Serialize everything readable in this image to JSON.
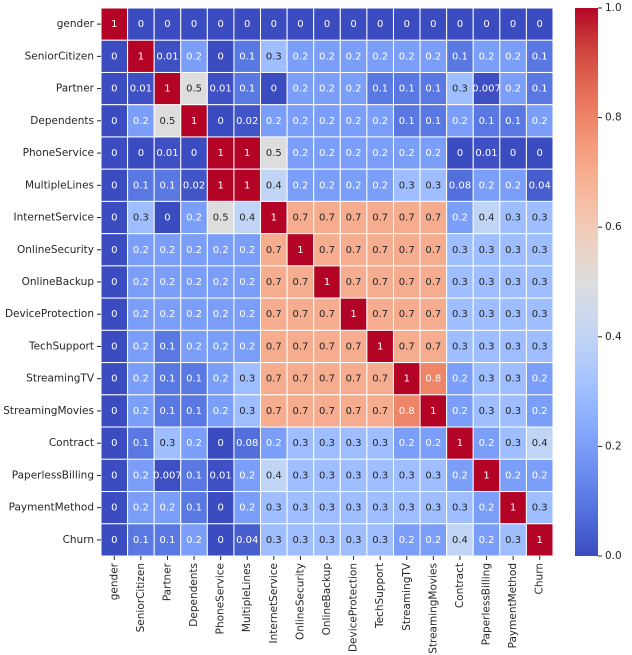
{
  "chart_data": {
    "type": "heatmap",
    "categories": [
      "gender",
      "SeniorCitizen",
      "Partner",
      "Dependents",
      "PhoneService",
      "MultipleLines",
      "InternetService",
      "OnlineSecurity",
      "OnlineBackup",
      "DeviceProtection",
      "TechSupport",
      "StreamingTV",
      "StreamingMovies",
      "Contract",
      "PaperlessBilling",
      "PaymentMethod",
      "Churn"
    ],
    "matrix": [
      [
        1,
        0,
        0,
        0,
        0,
        0,
        0,
        0,
        0,
        0,
        0,
        0,
        0,
        0,
        0,
        0,
        0
      ],
      [
        0,
        1,
        0.01,
        0.2,
        0,
        0.1,
        0.3,
        0.2,
        0.2,
        0.2,
        0.2,
        0.2,
        0.2,
        0.1,
        0.2,
        0.2,
        0.1
      ],
      [
        0,
        0.01,
        1,
        0.5,
        0.01,
        0.1,
        0,
        0.2,
        0.2,
        0.2,
        0.1,
        0.1,
        0.1,
        0.3,
        0.007,
        0.2,
        0.1
      ],
      [
        0,
        0.2,
        0.5,
        1,
        0,
        0.02,
        0.2,
        0.2,
        0.2,
        0.2,
        0.2,
        0.1,
        0.1,
        0.2,
        0.1,
        0.1,
        0.2
      ],
      [
        0,
        0,
        0.01,
        0,
        1,
        1,
        0.5,
        0.2,
        0.2,
        0.2,
        0.2,
        0.2,
        0.2,
        0,
        0.01,
        0,
        0
      ],
      [
        0,
        0.1,
        0.1,
        0.02,
        1,
        1,
        0.4,
        0.2,
        0.2,
        0.2,
        0.2,
        0.3,
        0.3,
        0.08,
        0.2,
        0.2,
        0.04
      ],
      [
        0,
        0.3,
        0,
        0.2,
        0.5,
        0.4,
        1,
        0.7,
        0.7,
        0.7,
        0.7,
        0.7,
        0.7,
        0.2,
        0.4,
        0.3,
        0.3
      ],
      [
        0,
        0.2,
        0.2,
        0.2,
        0.2,
        0.2,
        0.7,
        1,
        0.7,
        0.7,
        0.7,
        0.7,
        0.7,
        0.3,
        0.3,
        0.3,
        0.3
      ],
      [
        0,
        0.2,
        0.2,
        0.2,
        0.2,
        0.2,
        0.7,
        0.7,
        1,
        0.7,
        0.7,
        0.7,
        0.7,
        0.3,
        0.3,
        0.3,
        0.3
      ],
      [
        0,
        0.2,
        0.2,
        0.2,
        0.2,
        0.2,
        0.7,
        0.7,
        0.7,
        1,
        0.7,
        0.7,
        0.7,
        0.3,
        0.3,
        0.3,
        0.3
      ],
      [
        0,
        0.2,
        0.1,
        0.2,
        0.2,
        0.2,
        0.7,
        0.7,
        0.7,
        0.7,
        1,
        0.7,
        0.7,
        0.3,
        0.3,
        0.3,
        0.3
      ],
      [
        0,
        0.2,
        0.1,
        0.1,
        0.2,
        0.3,
        0.7,
        0.7,
        0.7,
        0.7,
        0.7,
        1,
        0.8,
        0.2,
        0.3,
        0.3,
        0.2
      ],
      [
        0,
        0.2,
        0.1,
        0.1,
        0.2,
        0.3,
        0.7,
        0.7,
        0.7,
        0.7,
        0.7,
        0.8,
        1,
        0.2,
        0.3,
        0.3,
        0.2
      ],
      [
        0,
        0.1,
        0.3,
        0.2,
        0,
        0.08,
        0.2,
        0.3,
        0.3,
        0.3,
        0.3,
        0.2,
        0.2,
        1,
        0.2,
        0.3,
        0.4
      ],
      [
        0,
        0.2,
        0.007,
        0.1,
        0.01,
        0.2,
        0.4,
        0.3,
        0.3,
        0.3,
        0.3,
        0.3,
        0.3,
        0.2,
        1,
        0.2,
        0.2
      ],
      [
        0,
        0.2,
        0.2,
        0.1,
        0,
        0.2,
        0.3,
        0.3,
        0.3,
        0.3,
        0.3,
        0.3,
        0.3,
        0.3,
        0.2,
        1,
        0.3
      ],
      [
        0,
        0.1,
        0.1,
        0.2,
        0,
        0.04,
        0.3,
        0.3,
        0.3,
        0.3,
        0.3,
        0.2,
        0.2,
        0.4,
        0.2,
        0.3,
        1
      ]
    ],
    "vlim": [
      0,
      1
    ],
    "colorbar_ticks": [
      {
        "value": 0,
        "label": "0.0"
      },
      0.2,
      0.4,
      0.6,
      0.8,
      {
        "value": 1,
        "label": "1.0"
      }
    ]
  }
}
